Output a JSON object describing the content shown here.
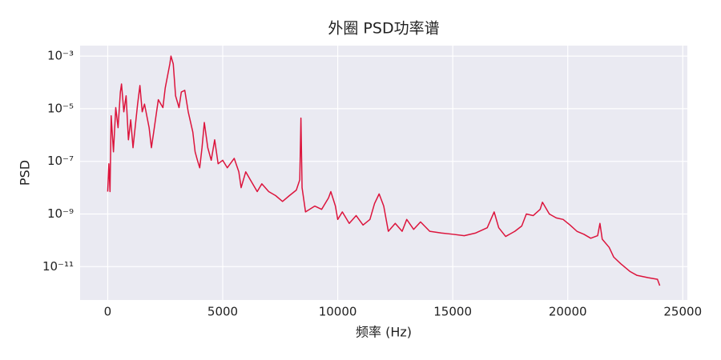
{
  "chart_data": {
    "type": "line",
    "title": "外圈 PSD功率谱",
    "xlabel": "频率 (Hz)",
    "ylabel": "PSD",
    "x": [
      0,
      50,
      100,
      150,
      250,
      350,
      450,
      550,
      600,
      700,
      800,
      900,
      1000,
      1100,
      1300,
      1400,
      1500,
      1600,
      1800,
      1900,
      2000,
      2100,
      2200,
      2400,
      2500,
      2700,
      2750,
      2850,
      2950,
      3100,
      3200,
      3350,
      3500,
      3700,
      3800,
      3900,
      4000,
      4100,
      4200,
      4350,
      4500,
      4650,
      4800,
      5000,
      5200,
      5500,
      5700,
      5800,
      6000,
      6200,
      6500,
      6700,
      7000,
      7300,
      7600,
      7900,
      8200,
      8350,
      8400,
      8450,
      8600,
      9000,
      9300,
      9600,
      9700,
      9900,
      10000,
      10200,
      10500,
      10800,
      11100,
      11400,
      11600,
      11800,
      12000,
      12200,
      12500,
      12800,
      13000,
      13300,
      13600,
      14000,
      14500,
      15000,
      15500,
      16000,
      16500,
      16800,
      17000,
      17300,
      17700,
      18000,
      18200,
      18500,
      18800,
      18900,
      19200,
      19500,
      19800,
      20100,
      20400,
      20700,
      21000,
      21300,
      21400,
      21500,
      21800,
      22000,
      22300,
      22700,
      23000,
      23500,
      23900,
      24000
    ],
    "values": [
      7.1e-09,
      8.1e-08,
      7.1e-09,
      5.4e-06,
      2.3e-07,
      1.1e-05,
      1.9e-06,
      4.3e-05,
      8.7e-05,
      7.6e-06,
      3.1e-05,
      6.6e-07,
      3.8e-06,
      3.3e-07,
      1.5e-05,
      7.6e-05,
      7.6e-06,
      1.5e-05,
      1.9e-06,
      3.3e-07,
      1.3e-06,
      5.4e-06,
      2.2e-05,
      1.1e-05,
      6.1e-05,
      0.0005,
      0.001,
      0.0005,
      3.1e-05,
      1.1e-05,
      4.3e-05,
      5e-05,
      7.6e-06,
      1.3e-06,
      2.3e-07,
      1.1e-07,
      5.7e-08,
      3.3e-07,
      3e-06,
      3.3e-07,
      1.1e-07,
      6.6e-07,
      8.1e-08,
      1.1e-07,
      5.7e-08,
      1.3e-07,
      4e-08,
      1e-08,
      4e-08,
      2e-08,
      7.1e-09,
      1.4e-08,
      7.1e-09,
      5e-09,
      3e-09,
      5e-09,
      8.1e-09,
      2e-08,
      4.4e-06,
      1e-08,
      1.2e-09,
      2e-09,
      1.5e-09,
      4.1e-09,
      7.1e-09,
      2e-09,
      6.2e-10,
      1.2e-09,
      4.4e-10,
      8.7e-10,
      3.8e-10,
      6.2e-10,
      2.5e-09,
      5.8e-09,
      2e-09,
      2.2e-10,
      4.4e-10,
      2.2e-10,
      6.2e-10,
      2.6e-10,
      5e-10,
      2.2e-10,
      1.9e-10,
      1.7e-10,
      1.5e-10,
      1.9e-10,
      3e-10,
      1.2e-09,
      3e-10,
      1.4e-10,
      2.2e-10,
      3.5e-10,
      1e-09,
      8.7e-10,
      1.5e-09,
      2.8e-09,
      1e-09,
      7.1e-10,
      6.2e-10,
      3.8e-10,
      2.2e-10,
      1.7e-10,
      1.2e-10,
      1.5e-10,
      4.4e-10,
      1.1e-10,
      5.4e-11,
      2.3e-11,
      1.3e-11,
      6.6e-12,
      4.7e-12,
      3.8e-12,
      3.3e-12,
      1.9e-12
    ],
    "color": "#dc143c",
    "xlim": [
      -1200,
      25200
    ],
    "xticks": [
      0,
      5000,
      10000,
      15000,
      20000,
      25000
    ],
    "ylim": [
      5.4e-13,
      0.0025
    ],
    "yscale": "log",
    "yticks": [
      {
        "value": 0.001,
        "label": "10⁻³"
      },
      {
        "value": 1e-05,
        "label": "10⁻⁵"
      },
      {
        "value": 1e-07,
        "label": "10⁻⁷"
      },
      {
        "value": 1e-09,
        "label": "10⁻⁹"
      },
      {
        "value": 1e-11,
        "label": "10⁻¹¹"
      }
    ],
    "grid": true
  }
}
